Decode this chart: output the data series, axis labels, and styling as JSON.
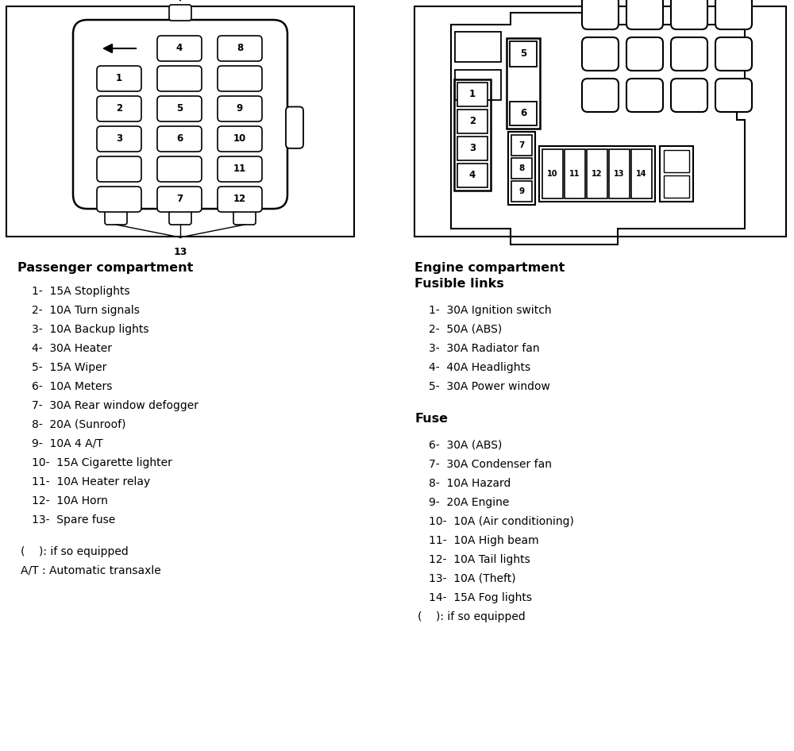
{
  "bg_color": "#ffffff",
  "passenger_title": "Passenger compartment",
  "passenger_items": [
    "1-  15A Stoplights",
    "2-  10A Turn signals",
    "3-  10A Backup lights",
    "4-  30A Heater",
    "5-  15A Wiper",
    "6-  10A Meters",
    "7-  30A Rear window defogger",
    "8-  20A (Sunroof)",
    "9-  10A 4 A/T",
    "10-  15A Cigarette lighter",
    "11-  10A Heater relay",
    "12-  10A Horn",
    "13-  Spare fuse"
  ],
  "passenger_notes": [
    "(    ): if so equipped",
    "A/T : Automatic transaxle"
  ],
  "engine_title1": "Engine compartment",
  "engine_title2": "Fusible links",
  "engine_fusible_items": [
    "1-  30A Ignition switch",
    "2-  50A (ABS)",
    "3-  30A Radiator fan",
    "4-  40A Headlights",
    "5-  30A Power window"
  ],
  "engine_fuse_title": "Fuse",
  "engine_fuse_items": [
    "6-  30A (ABS)",
    "7-  30A Condenser fan",
    "8-  10A Hazard",
    "9-  20A Engine",
    "10-  10A (Air conditioning)",
    "11-  10A High beam",
    "12-  10A Tail lights",
    "13-  10A (Theft)",
    "14-  15A Fog lights",
    "(    ): if so equipped"
  ]
}
